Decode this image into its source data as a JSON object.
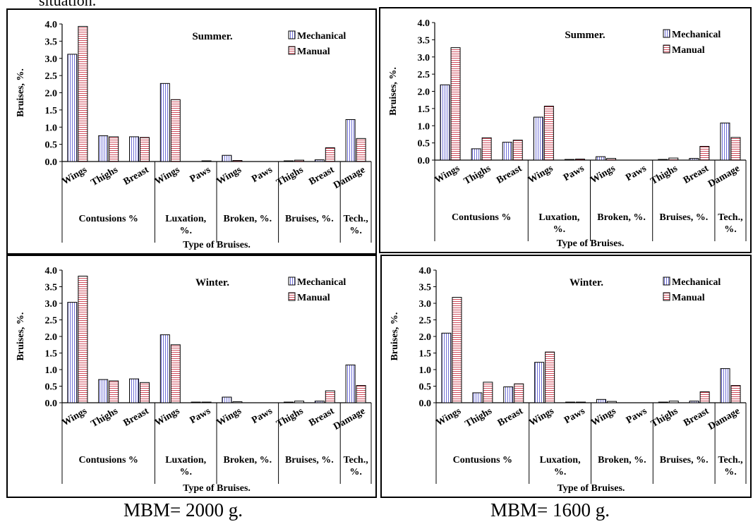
{
  "top_text": "situation.",
  "captions": [
    "MBM= 2000 g.",
    "MBM= 1600 g."
  ],
  "legend": [
    "Mechanical",
    "Manual"
  ],
  "colors": {
    "mechanical": "#6f6fd6",
    "manual": "#d04a5a"
  },
  "chart_data": [
    {
      "type": "bar",
      "title": "Summer.",
      "ylabel": "Bruises, %.",
      "xlabel": "Type of Bruises.",
      "ylim": [
        0,
        4
      ],
      "yticks": [
        "0.0",
        "0.5",
        "1.0",
        "1.5",
        "2.0",
        "2.5",
        "3.0",
        "3.5",
        "4.0"
      ],
      "categories": [
        "Wings",
        "Thighs",
        "Breast",
        "Wings",
        "Paws",
        "Wings",
        "Paws",
        "Thighs",
        "Breast",
        "Damage"
      ],
      "groups": [
        {
          "label": "Contusions %",
          "span": 3
        },
        {
          "label": "Luxation, %.",
          "span": 2
        },
        {
          "label": "Broken, %.",
          "span": 2
        },
        {
          "label": "Bruises, %.",
          "span": 2
        },
        {
          "label": "Tech., %.",
          "span": 1
        }
      ],
      "series": [
        {
          "name": "Mechanical",
          "values": [
            3.12,
            0.75,
            0.72,
            2.27,
            0.0,
            0.18,
            0.0,
            0.02,
            0.05,
            1.22
          ]
        },
        {
          "name": "Manual",
          "values": [
            3.93,
            0.72,
            0.7,
            1.8,
            0.02,
            0.03,
            0.0,
            0.04,
            0.4,
            0.67
          ]
        }
      ]
    },
    {
      "type": "bar",
      "title": "Summer.",
      "ylabel": "Bruises, %.",
      "xlabel": "Type of Bruises.",
      "ylim": [
        0,
        4
      ],
      "yticks": [
        "0.0",
        "0.5",
        "1.0",
        "1.5",
        "2.0",
        "2.5",
        "3.0",
        "3.5",
        "4.0"
      ],
      "categories": [
        "Wings",
        "Thighs",
        "Breast",
        "Wings",
        "Paws",
        "Wings",
        "Paws",
        "Thighs",
        "Breast",
        "Damage"
      ],
      "groups": [
        {
          "label": "Contusions %",
          "span": 3
        },
        {
          "label": "Luxation, %.",
          "span": 2
        },
        {
          "label": "Broken, %.",
          "span": 2
        },
        {
          "label": "Bruises, %.",
          "span": 2
        },
        {
          "label": "Tech., %.",
          "span": 1
        }
      ],
      "series": [
        {
          "name": "Mechanical",
          "values": [
            2.19,
            0.33,
            0.52,
            1.25,
            0.02,
            0.1,
            0.0,
            0.02,
            0.05,
            1.08
          ]
        },
        {
          "name": "Manual",
          "values": [
            3.27,
            0.65,
            0.58,
            1.57,
            0.03,
            0.05,
            0.0,
            0.06,
            0.4,
            0.66
          ]
        }
      ]
    },
    {
      "type": "bar",
      "title": "Winter.",
      "ylabel": "Bruises, %.",
      "xlabel": "Type of Bruises.",
      "ylim": [
        0,
        4
      ],
      "yticks": [
        "0.0",
        "0.5",
        "1.0",
        "1.5",
        "2.0",
        "2.5",
        "3.0",
        "3.5",
        "4.0"
      ],
      "categories": [
        "Wings",
        "Thighs",
        "Breast",
        "Wings",
        "Paws",
        "Wings",
        "Paws",
        "Thighs",
        "Breast",
        "Damage"
      ],
      "groups": [
        {
          "label": "Contusions %",
          "span": 3
        },
        {
          "label": "Luxation, %.",
          "span": 2
        },
        {
          "label": "Broken, %.",
          "span": 2
        },
        {
          "label": "Bruises, %.",
          "span": 2
        },
        {
          "label": "Tech., %.",
          "span": 1
        }
      ],
      "series": [
        {
          "name": "Mechanical",
          "values": [
            3.03,
            0.7,
            0.72,
            2.05,
            0.02,
            0.17,
            0.0,
            0.02,
            0.05,
            1.14
          ]
        },
        {
          "name": "Manual",
          "values": [
            3.82,
            0.66,
            0.61,
            1.75,
            0.02,
            0.03,
            0.0,
            0.05,
            0.36,
            0.52
          ]
        }
      ]
    },
    {
      "type": "bar",
      "title": "Winter.",
      "ylabel": "Bruises, %.",
      "xlabel": "Type of Bruises.",
      "ylim": [
        0,
        4
      ],
      "yticks": [
        "0.0",
        "0.5",
        "1.0",
        "1.5",
        "2.0",
        "2.5",
        "3.0",
        "3.5",
        "4.0"
      ],
      "categories": [
        "Wings",
        "Thighs",
        "Breast",
        "Wings",
        "Paws",
        "Wings",
        "Paws",
        "Thighs",
        "Breast",
        "Damage"
      ],
      "groups": [
        {
          "label": "Contusions %",
          "span": 3
        },
        {
          "label": "Luxation, %.",
          "span": 2
        },
        {
          "label": "Broken, %.",
          "span": 2
        },
        {
          "label": "Bruises, %.",
          "span": 2
        },
        {
          "label": "Tech., %.",
          "span": 1
        }
      ],
      "series": [
        {
          "name": "Mechanical",
          "values": [
            2.1,
            0.3,
            0.48,
            1.22,
            0.02,
            0.1,
            0.0,
            0.02,
            0.05,
            1.03
          ]
        },
        {
          "name": "Manual",
          "values": [
            3.18,
            0.62,
            0.57,
            1.53,
            0.02,
            0.04,
            0.0,
            0.05,
            0.33,
            0.52
          ]
        }
      ]
    }
  ]
}
